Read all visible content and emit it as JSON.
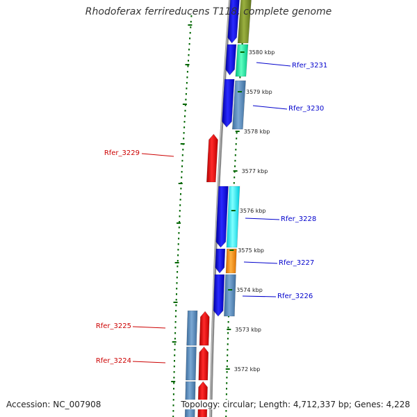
{
  "title": "Rhodoferax ferrireducens T118, complete genome",
  "accession": "Accession: NC_007908",
  "topology": "Topology: circular; Length: 4,712,337 bp; Genes: 4,228",
  "colors": {
    "forward_label": "#0000cc",
    "reverse_label": "#cc0000",
    "backbone": "#808080",
    "tick": "#006600"
  },
  "ticks": [
    "3580 kbp",
    "3579 kbp",
    "3578 kbp",
    "3577 kbp",
    "3576 kbp",
    "3575 kbp",
    "3574 kbp",
    "3573 kbp",
    "3572 kbp"
  ],
  "genes": [
    {
      "label": "Rfer_3231",
      "strand": "forward"
    },
    {
      "label": "Rfer_3230",
      "strand": "forward"
    },
    {
      "label": "Rfer_3229",
      "strand": "reverse"
    },
    {
      "label": "Rfer_3228",
      "strand": "forward"
    },
    {
      "label": "Rfer_3227",
      "strand": "forward"
    },
    {
      "label": "Rfer_3226",
      "strand": "forward"
    },
    {
      "label": "Rfer_3225",
      "strand": "reverse"
    },
    {
      "label": "Rfer_3224",
      "strand": "reverse"
    }
  ]
}
